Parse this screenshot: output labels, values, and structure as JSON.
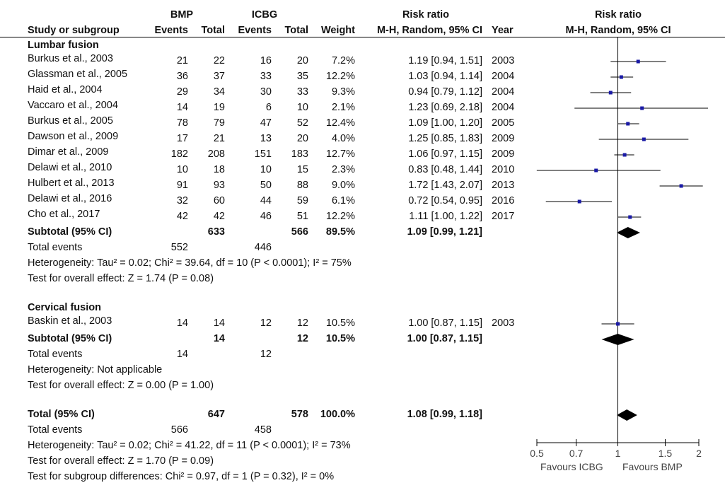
{
  "header": {
    "group_exp": "BMP",
    "group_ctl": "ICBG",
    "rr_title": "Risk ratio",
    "plot_title": "Risk ratio",
    "study_col": "Study or subgroup",
    "events": "Events",
    "total": "Total",
    "weight": "Weight",
    "method": "M-H, Random, 95% CI",
    "year": "Year",
    "plot_method": "M-H, Random, 95% CI"
  },
  "subgroups": [
    {
      "title": "Lumbar fusion",
      "studies": [
        {
          "name": "Burkus et al., 2003",
          "e1": "21",
          "t1": "22",
          "e2": "16",
          "t2": "20",
          "weight": "7.2%",
          "ci": "1.19 [0.94, 1.51]",
          "year": "2003"
        },
        {
          "name": "Glassman et al., 2005",
          "e1": "36",
          "t1": "37",
          "e2": "33",
          "t2": "35",
          "weight": "12.2%",
          "ci": "1.03 [0.94, 1.14]",
          "year": "2004"
        },
        {
          "name": "Haid et al., 2004",
          "e1": "29",
          "t1": "34",
          "e2": "30",
          "t2": "33",
          "weight": "9.3%",
          "ci": "0.94 [0.79, 1.12]",
          "year": "2004"
        },
        {
          "name": "Vaccaro et al., 2004",
          "e1": "14",
          "t1": "19",
          "e2": "6",
          "t2": "10",
          "weight": "2.1%",
          "ci": "1.23 [0.69, 2.18]",
          "year": "2004"
        },
        {
          "name": "Burkus et al., 2005",
          "e1": "78",
          "t1": "79",
          "e2": "47",
          "t2": "52",
          "weight": "12.4%",
          "ci": "1.09 [1.00, 1.20]",
          "year": "2005"
        },
        {
          "name": "Dawson et al., 2009",
          "e1": "17",
          "t1": "21",
          "e2": "13",
          "t2": "20",
          "weight": "4.0%",
          "ci": "1.25 [0.85, 1.83]",
          "year": "2009"
        },
        {
          "name": "Dimar et al., 2009",
          "e1": "182",
          "t1": "208",
          "e2": "151",
          "t2": "183",
          "weight": "12.7%",
          "ci": "1.06 [0.97, 1.15]",
          "year": "2009"
        },
        {
          "name": "Delawi et al., 2010",
          "e1": "10",
          "t1": "18",
          "e2": "10",
          "t2": "15",
          "weight": "2.3%",
          "ci": "0.83 [0.48, 1.44]",
          "year": "2010"
        },
        {
          "name": "Hulbert et al., 2013",
          "e1": "91",
          "t1": "93",
          "e2": "50",
          "t2": "88",
          "weight": "9.0%",
          "ci": "1.72 [1.43, 2.07]",
          "year": "2013"
        },
        {
          "name": "Delawi et al., 2016",
          "e1": "32",
          "t1": "60",
          "e2": "44",
          "t2": "59",
          "weight": "6.1%",
          "ci": "0.72 [0.54, 0.95]",
          "year": "2016"
        },
        {
          "name": "Cho et al., 2017",
          "e1": "42",
          "t1": "42",
          "e2": "46",
          "t2": "51",
          "weight": "12.2%",
          "ci": "1.11 [1.00, 1.22]",
          "year": "2017"
        }
      ],
      "subtotal": {
        "label": "Subtotal (95% CI)",
        "t1": "633",
        "t2": "566",
        "weight": "89.5%",
        "ci": "1.09 [0.99, 1.21]"
      },
      "events": {
        "label": "Total events",
        "e1": "552",
        "e2": "446"
      },
      "heterogeneity": "Heterogeneity: Tau² = 0.02; Chi² = 39.64, df = 10 (P < 0.0001); I² = 75%",
      "overall": "Test for overall effect: Z = 1.74 (P = 0.08)"
    },
    {
      "title": "Cervical fusion",
      "studies": [
        {
          "name": "Baskin et al., 2003",
          "e1": "14",
          "t1": "14",
          "e2": "12",
          "t2": "12",
          "weight": "10.5%",
          "ci": "1.00 [0.87, 1.15]",
          "year": "2003"
        }
      ],
      "subtotal": {
        "label": "Subtotal (95% CI)",
        "t1": "14",
        "t2": "12",
        "weight": "10.5%",
        "ci": "1.00 [0.87, 1.15]"
      },
      "events": {
        "label": "Total events",
        "e1": "14",
        "e2": "12"
      },
      "heterogeneity": "Heterogeneity: Not applicable",
      "overall": "Test for overall effect: Z = 0.00 (P = 1.00)"
    }
  ],
  "total": {
    "label": "Total (95% CI)",
    "t1": "647",
    "t2": "578",
    "weight": "100.0%",
    "ci": "1.08 [0.99, 1.18]"
  },
  "total_events": {
    "label": "Total events",
    "e1": "566",
    "e2": "458"
  },
  "total_heterogeneity": "Heterogeneity: Tau² = 0.02; Chi² = 41.22, df = 11 (P < 0.0001); I² = 73%",
  "total_overall": "Test for overall effect: Z = 1.70 (P = 0.09)",
  "subgroup_diff": "Test for subgroup differences: Chi² = 0.97, df = 1 (P = 0.32), I² = 0%",
  "axis": {
    "ticks": [
      "0.5",
      "0.7",
      "1",
      "1.5",
      "2"
    ],
    "favours_left": "Favours ICBG",
    "favours_right": "Favours BMP"
  },
  "chart_data": {
    "type": "scatter",
    "x_scale": "log",
    "xlim": [
      0.5,
      2
    ],
    "xticks": [
      0.5,
      0.7,
      1,
      1.5,
      2
    ],
    "reference_line": 1,
    "studies": [
      {
        "name": "Burkus et al., 2003",
        "rr": 1.19,
        "lo": 0.94,
        "hi": 1.51
      },
      {
        "name": "Glassman et al., 2005",
        "rr": 1.03,
        "lo": 0.94,
        "hi": 1.14
      },
      {
        "name": "Haid et al., 2004",
        "rr": 0.94,
        "lo": 0.79,
        "hi": 1.12
      },
      {
        "name": "Vaccaro et al., 2004",
        "rr": 1.23,
        "lo": 0.69,
        "hi": 2.18
      },
      {
        "name": "Burkus et al., 2005",
        "rr": 1.09,
        "lo": 1.0,
        "hi": 1.2
      },
      {
        "name": "Dawson et al., 2009",
        "rr": 1.25,
        "lo": 0.85,
        "hi": 1.83
      },
      {
        "name": "Dimar et al., 2009",
        "rr": 1.06,
        "lo": 0.97,
        "hi": 1.15
      },
      {
        "name": "Delawi et al., 2010",
        "rr": 0.83,
        "lo": 0.48,
        "hi": 1.44
      },
      {
        "name": "Hulbert et al., 2013",
        "rr": 1.72,
        "lo": 1.43,
        "hi": 2.07
      },
      {
        "name": "Delawi et al., 2016",
        "rr": 0.72,
        "lo": 0.54,
        "hi": 0.95
      },
      {
        "name": "Cho et al., 2017",
        "rr": 1.11,
        "lo": 1.0,
        "hi": 1.22
      },
      {
        "name": "Baskin et al., 2003",
        "rr": 1.0,
        "lo": 0.87,
        "hi": 1.15
      }
    ],
    "pooled": [
      {
        "name": "Lumbar fusion subtotal",
        "rr": 1.09,
        "lo": 0.99,
        "hi": 1.21
      },
      {
        "name": "Cervical fusion subtotal",
        "rr": 1.0,
        "lo": 0.87,
        "hi": 1.15
      },
      {
        "name": "Total",
        "rr": 1.08,
        "lo": 0.99,
        "hi": 1.18
      }
    ],
    "colors": {
      "marker": "#1a1aa6",
      "line": "#000000",
      "diamond": "#000000"
    }
  }
}
